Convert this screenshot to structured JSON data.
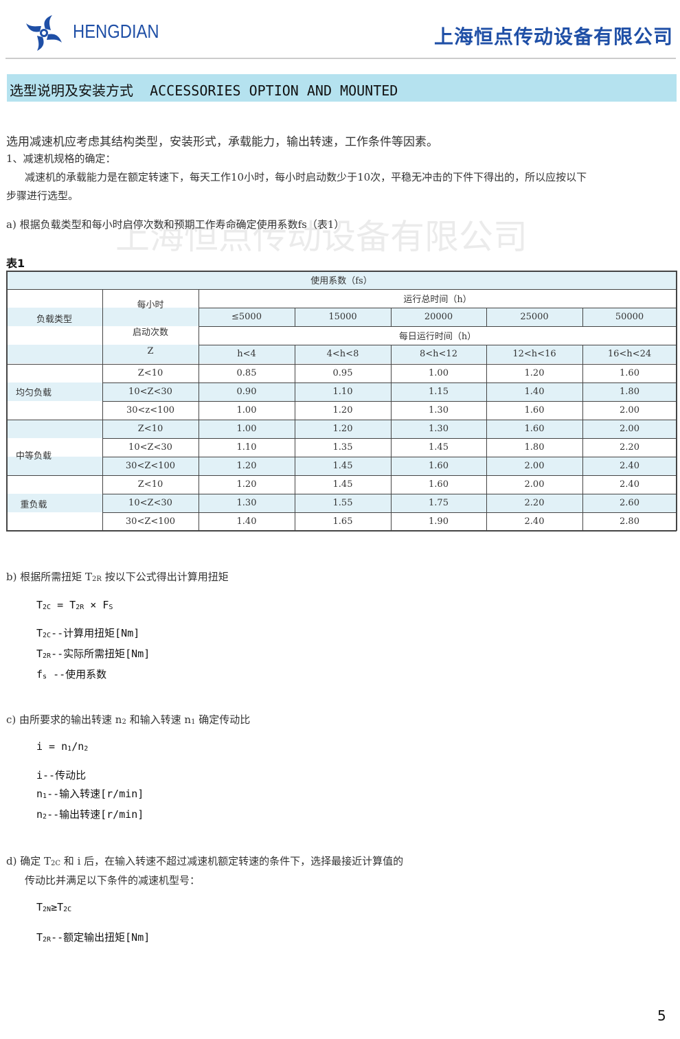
{
  "header": {
    "brand": "HENGDIAN",
    "company": "上海恒点传动设备有限公司",
    "logo_icon": "pinwheel-logo-icon",
    "brand_color": "#1f4fa6"
  },
  "banner": {
    "title": "选型说明及安装方式  ACCESSORIES OPTION AND MOUNTED",
    "color": "#b5e2ef"
  },
  "intro": {
    "line1": "选用减速机应考虑其结构类型，安装形式，承载能力，输出转速，工作条件等因素。",
    "line2": "1、减速机规格的确定：",
    "line3": "减速机的承载能力是在额定转速下，每天工作10小时，每小时启动数少于10次，平稳无冲击的下件下得出的，所以应按以下",
    "line4": "步骤进行选型。",
    "step_a": "a) 根据负载类型和每小时启停次数和预期工作寿命确定使用系数fs（表1）"
  },
  "watermark": "上海恒点传动设备有限公司",
  "table": {
    "label": "表1",
    "title": "使用系数（fs）",
    "col_load_type": "负载类型",
    "col_starts": [
      "每小时",
      "启动次数",
      "Z"
    ],
    "total_hours_label": "运行总时间（h）",
    "total_hours": [
      "≤5000",
      "15000",
      "20000",
      "25000",
      "50000"
    ],
    "daily_hours_label": "每日运行时间（h）",
    "daily_hours": [
      "h<4",
      "4<h<8",
      "8<h<12",
      "12<h<16",
      "16<h<24"
    ],
    "groups": [
      {
        "name": "均匀负载",
        "rows": [
          [
            "Z<10",
            "0.85",
            "0.95",
            "1.00",
            "1.20",
            "1.60"
          ],
          [
            "10<Z<30",
            "0.90",
            "1.10",
            "1.15",
            "1.40",
            "1.80"
          ],
          [
            "30<z<100",
            "1.00",
            "1.20",
            "1.30",
            "1.60",
            "2.00"
          ]
        ]
      },
      {
        "name": "中等负载",
        "rows": [
          [
            "Z<10",
            "1.00",
            "1.20",
            "1.30",
            "1.60",
            "2.00"
          ],
          [
            "10<Z<30",
            "1.10",
            "1.35",
            "1.45",
            "1.80",
            "2.20"
          ],
          [
            "30<Z<100",
            "1.20",
            "1.45",
            "1.60",
            "2.00",
            "2.40"
          ]
        ]
      },
      {
        "name": "重负载",
        "rows": [
          [
            "Z<10",
            "1.20",
            "1.45",
            "1.60",
            "2.00",
            "2.40"
          ],
          [
            "10<Z<30",
            "1.30",
            "1.55",
            "1.75",
            "2.20",
            "2.60"
          ],
          [
            "30<Z<100",
            "1.40",
            "1.65",
            "1.90",
            "2.40",
            "2.80"
          ]
        ]
      }
    ],
    "stripe_color": "#e1f1f7"
  },
  "step_b": {
    "heading": [
      [
        "b) 根据所需扭矩 "
      ],
      [
        "T",
        "2R"
      ],
      [
        " 按以下公式得出计算用扭矩"
      ]
    ],
    "formula": [
      [
        "T",
        "2C"
      ],
      [
        " = "
      ],
      [
        "T",
        "2R"
      ],
      [
        " × "
      ],
      [
        "F",
        "S"
      ]
    ],
    "defs": [
      [
        [
          "T",
          "2C"
        ],
        [
          "--计算用扭矩[Nm]"
        ]
      ],
      [
        [
          "T",
          "2R"
        ],
        [
          "--实际所需扭矩[Nm]"
        ]
      ],
      [
        [
          "f",
          "s"
        ],
        [
          " --使用系数"
        ]
      ]
    ]
  },
  "step_c": {
    "heading": [
      [
        "c) 由所要求的输出转速 "
      ],
      [
        "n",
        "2"
      ],
      [
        " 和输入转速 "
      ],
      [
        "n",
        "1"
      ],
      [
        " 确定传动比"
      ]
    ],
    "formula": [
      [
        "i = "
      ],
      [
        "n",
        "1"
      ],
      [
        "/"
      ],
      [
        "n",
        "2"
      ]
    ],
    "defs": [
      [
        [
          "i--传动比"
        ]
      ],
      [
        [
          "n",
          "1"
        ],
        [
          "--输入转速[r/min]"
        ]
      ],
      [
        [
          "n",
          "2"
        ],
        [
          "--输出转速[r/min]"
        ]
      ]
    ]
  },
  "step_d": {
    "heading": [
      [
        "d) 确定 "
      ],
      [
        "T",
        "2C"
      ],
      [
        " 和 i 后，在输入转速不超过减速机额定转速的条件下，选择最接近计算值的"
      ]
    ],
    "heading2": "传动比并满足以下条件的减速机型号：",
    "formula": [
      [
        "T",
        "2N"
      ],
      [
        "≥"
      ],
      [
        "T",
        "2C"
      ]
    ],
    "defs": [
      [
        [
          "T",
          "2R"
        ],
        [
          "--额定输出扭矩[Nm]"
        ]
      ]
    ]
  },
  "page_number": "5"
}
